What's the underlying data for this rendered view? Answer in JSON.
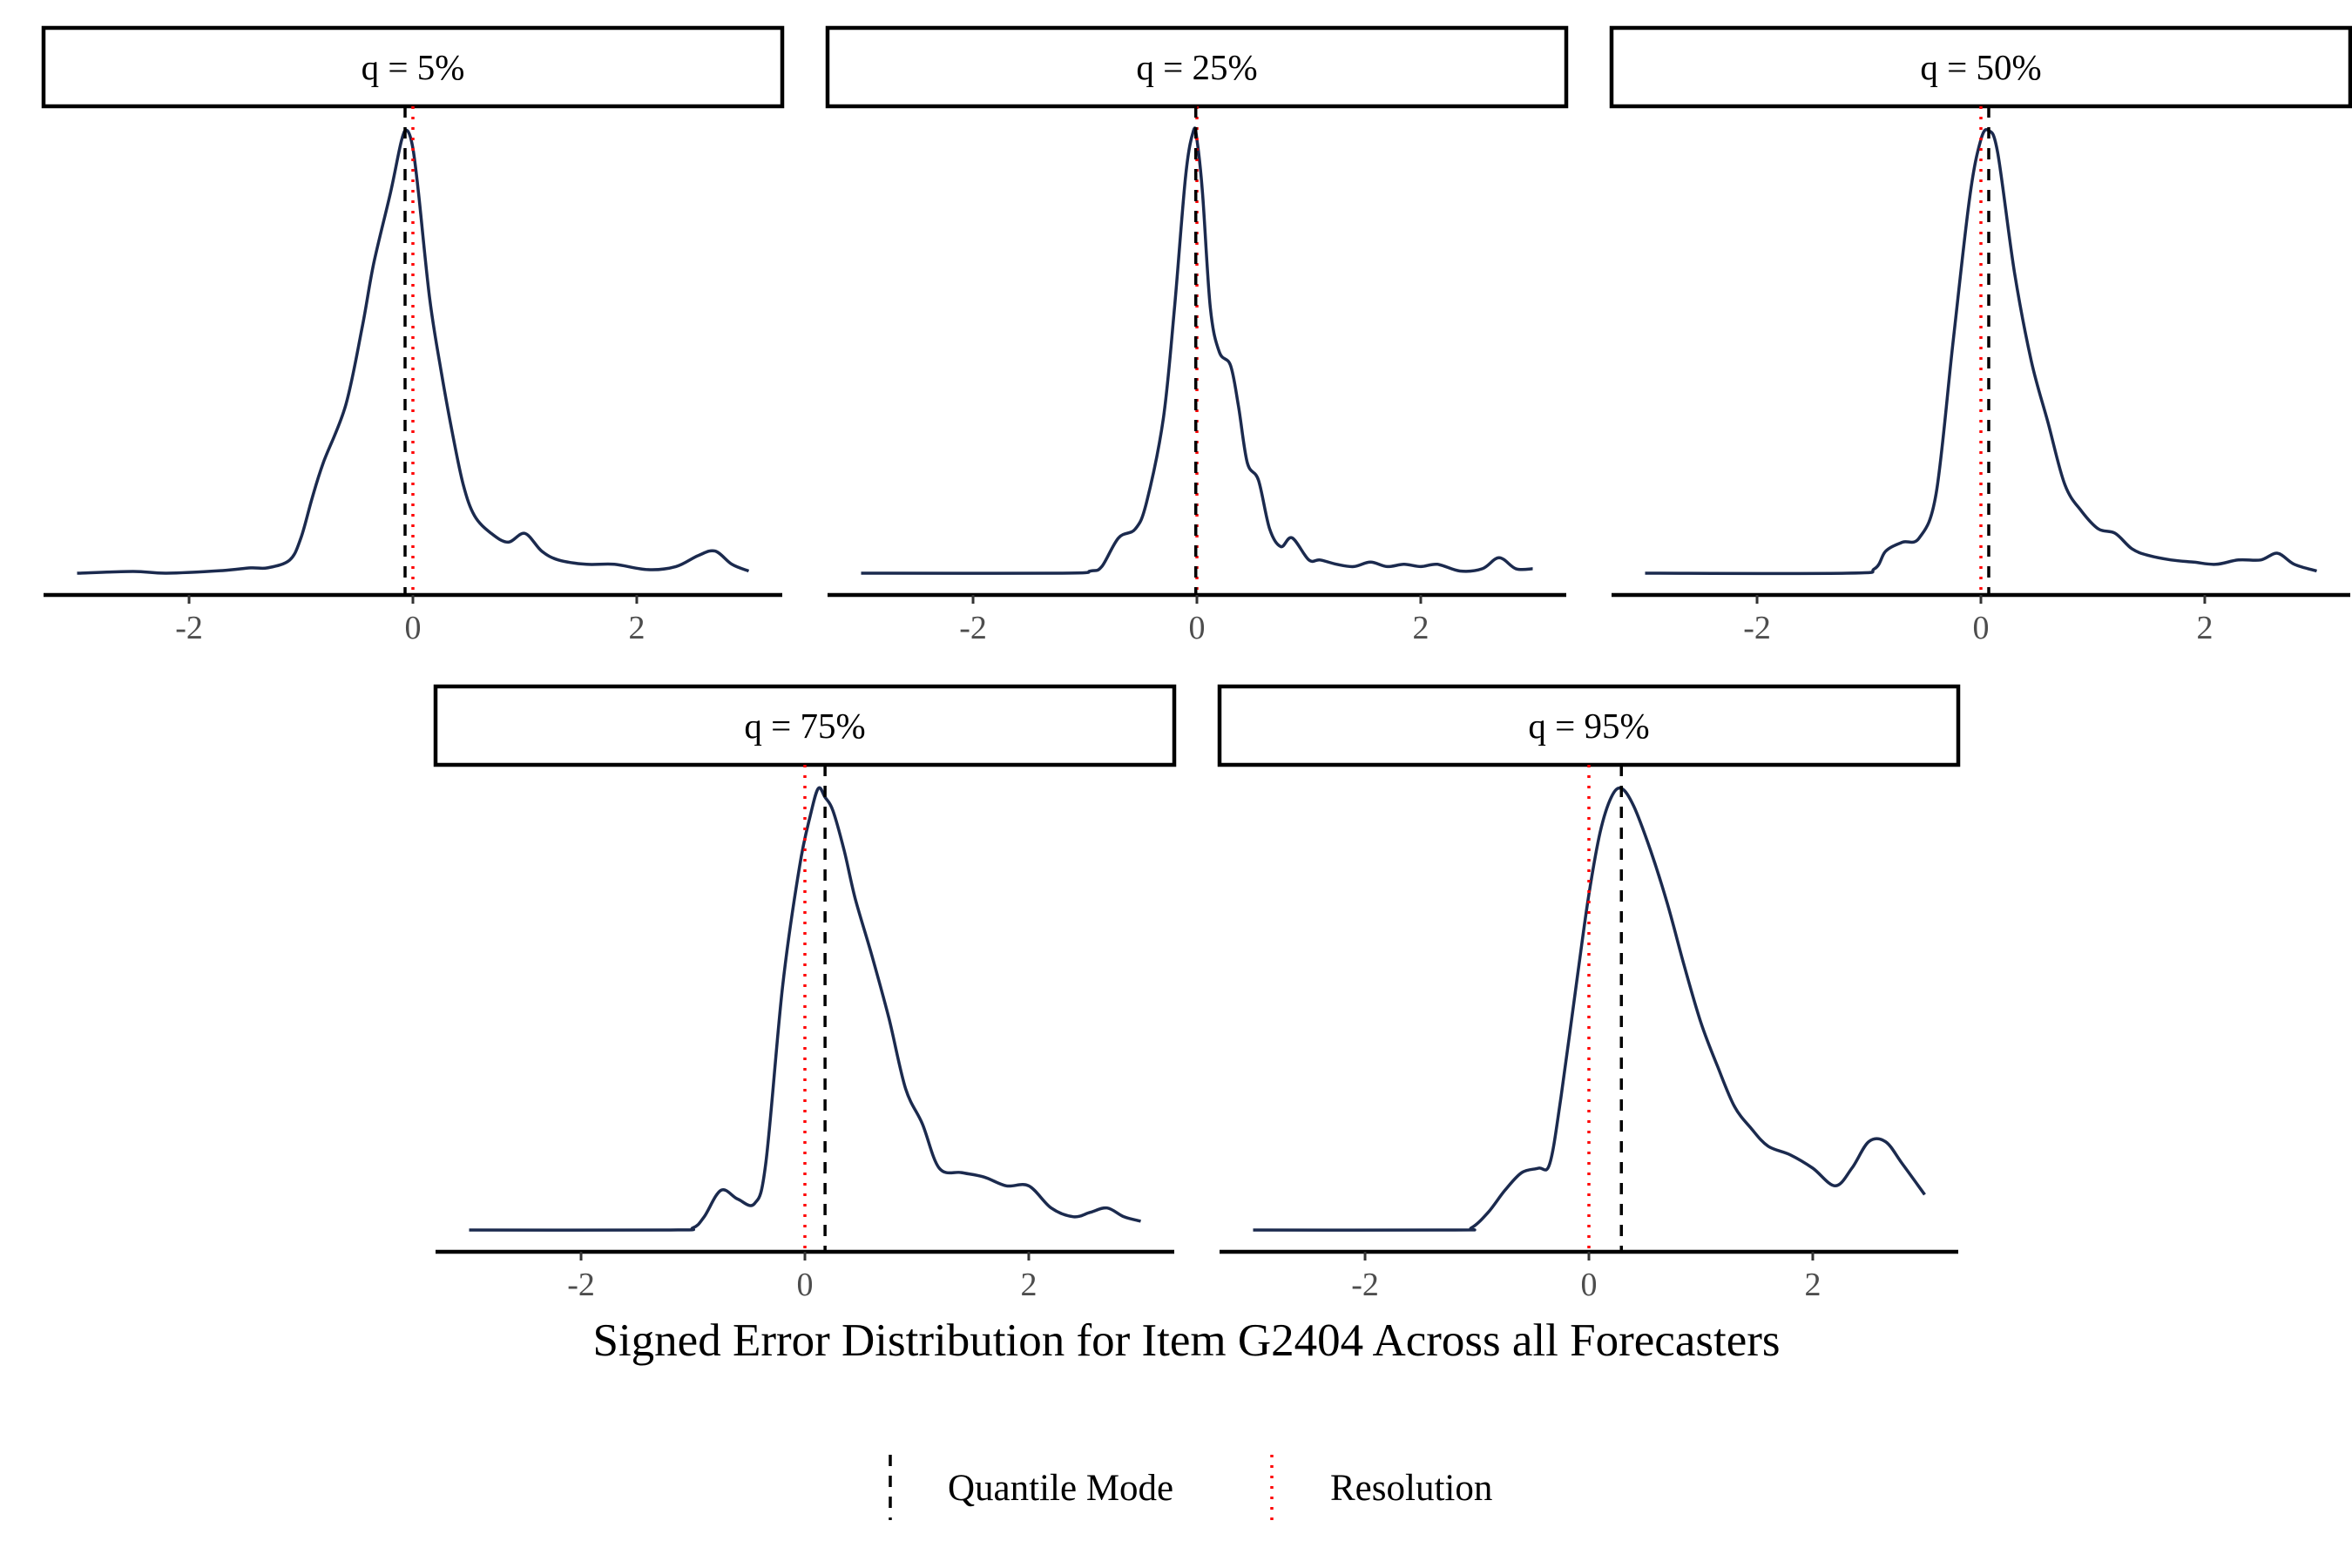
{
  "chart_data": {
    "type": "line",
    "kind": "density facets",
    "xlabel": "Signed Error Distribution for Item G2404 Across all Forecasters",
    "ylabel": "",
    "xlim": [
      -3.3,
      3.3
    ],
    "x_ticks": [
      -2,
      0,
      2
    ],
    "x_tick_labels": [
      "-2",
      "0",
      "2"
    ],
    "grid": false,
    "colors": {
      "density": "#1b2a4e",
      "mode_line": "#000000",
      "resolution_line": "#ff0000",
      "strip_border": "#000000"
    },
    "legend": {
      "position": "bottom",
      "entries": [
        {
          "label": "Quantile Mode",
          "linetype": "dashed",
          "color": "#000000"
        },
        {
          "label": "Resolution",
          "linetype": "dotted",
          "color": "#ff0000"
        }
      ]
    },
    "panels": [
      {
        "label": "q = 5%",
        "mode": -0.07,
        "resolution": 0.0,
        "density": {
          "x": [
            -3.0,
            -2.5,
            -2.2,
            -1.7,
            -1.45,
            -1.3,
            -1.1,
            -1.0,
            -0.9,
            -0.8,
            -0.6,
            -0.45,
            -0.35,
            -0.2,
            -0.1,
            -0.05,
            0.0,
            0.05,
            0.15,
            0.25,
            0.35,
            0.45,
            0.55,
            0.7,
            0.85,
            1.0,
            1.15,
            1.3,
            1.55,
            1.8,
            2.1,
            2.35,
            2.55,
            2.7,
            2.85,
            3.0
          ],
          "y": [
            0.0,
            0.004,
            0.0,
            0.006,
            0.012,
            0.012,
            0.03,
            0.08,
            0.17,
            0.25,
            0.38,
            0.56,
            0.7,
            0.86,
            0.98,
            1.0,
            0.96,
            0.86,
            0.62,
            0.46,
            0.32,
            0.2,
            0.13,
            0.09,
            0.07,
            0.09,
            0.05,
            0.03,
            0.02,
            0.02,
            0.008,
            0.015,
            0.04,
            0.05,
            0.02,
            0.005
          ]
        }
      },
      {
        "label": "q = 25%",
        "mode": -0.01,
        "resolution": 0.0,
        "density": {
          "x": [
            -3.0,
            -1.2,
            -0.95,
            -0.85,
            -0.7,
            -0.55,
            -0.45,
            -0.3,
            -0.2,
            -0.1,
            -0.03,
            0.0,
            0.05,
            0.12,
            0.2,
            0.3,
            0.37,
            0.45,
            0.55,
            0.65,
            0.75,
            0.85,
            1.0,
            1.1,
            1.25,
            1.4,
            1.55,
            1.7,
            1.85,
            2.0,
            2.15,
            2.35,
            2.55,
            2.7,
            2.85,
            3.0
          ],
          "y": [
            0.0,
            0.0,
            0.005,
            0.015,
            0.08,
            0.1,
            0.16,
            0.35,
            0.6,
            0.9,
            1.0,
            0.98,
            0.86,
            0.6,
            0.5,
            0.47,
            0.38,
            0.25,
            0.21,
            0.1,
            0.06,
            0.08,
            0.03,
            0.03,
            0.02,
            0.015,
            0.025,
            0.015,
            0.02,
            0.015,
            0.02,
            0.005,
            0.01,
            0.035,
            0.01,
            0.01
          ]
        }
      },
      {
        "label": "q = 50%",
        "mode": 0.07,
        "resolution": 0.0,
        "density": {
          "x": [
            -3.0,
            -1.2,
            -0.95,
            -0.85,
            -0.7,
            -0.55,
            -0.4,
            -0.25,
            -0.1,
            0.0,
            0.07,
            0.15,
            0.3,
            0.45,
            0.6,
            0.75,
            0.9,
            1.05,
            1.2,
            1.35,
            1.5,
            1.7,
            1.9,
            2.1,
            2.3,
            2.5,
            2.65,
            2.8,
            3.0
          ],
          "y": [
            0.0,
            0.0,
            0.01,
            0.05,
            0.07,
            0.08,
            0.18,
            0.52,
            0.85,
            0.98,
            1.0,
            0.95,
            0.68,
            0.48,
            0.34,
            0.2,
            0.14,
            0.1,
            0.09,
            0.055,
            0.04,
            0.03,
            0.025,
            0.02,
            0.03,
            0.03,
            0.045,
            0.02,
            0.005
          ]
        }
      },
      {
        "label": "q = 75%",
        "mode": 0.18,
        "resolution": 0.0,
        "density": {
          "x": [
            -3.0,
            -1.2,
            -1.0,
            -0.9,
            -0.75,
            -0.6,
            -0.45,
            -0.35,
            -0.2,
            -0.05,
            0.05,
            0.12,
            0.18,
            0.25,
            0.35,
            0.45,
            0.6,
            0.75,
            0.9,
            1.05,
            1.2,
            1.4,
            1.6,
            1.8,
            2.0,
            2.2,
            2.4,
            2.55,
            2.7,
            2.85,
            3.0
          ],
          "y": [
            0.0,
            0.0,
            0.005,
            0.03,
            0.09,
            0.07,
            0.06,
            0.15,
            0.55,
            0.82,
            0.94,
            1.0,
            0.98,
            0.95,
            0.86,
            0.75,
            0.62,
            0.48,
            0.32,
            0.24,
            0.14,
            0.13,
            0.12,
            0.1,
            0.1,
            0.05,
            0.03,
            0.04,
            0.05,
            0.03,
            0.02
          ]
        }
      },
      {
        "label": "q = 95%",
        "mode": 0.29,
        "resolution": 0.0,
        "density": {
          "x": [
            -3.0,
            -1.2,
            -1.05,
            -0.9,
            -0.75,
            -0.6,
            -0.45,
            -0.35,
            -0.25,
            -0.1,
            0.0,
            0.1,
            0.2,
            0.29,
            0.4,
            0.55,
            0.7,
            0.85,
            1.0,
            1.15,
            1.3,
            1.45,
            1.6,
            1.8,
            2.0,
            2.2,
            2.35,
            2.5,
            2.65,
            2.8,
            3.0
          ],
          "y": [
            0.0,
            0.0,
            0.005,
            0.04,
            0.09,
            0.13,
            0.14,
            0.15,
            0.3,
            0.58,
            0.76,
            0.9,
            0.98,
            1.0,
            0.96,
            0.86,
            0.74,
            0.6,
            0.47,
            0.37,
            0.28,
            0.23,
            0.19,
            0.17,
            0.14,
            0.1,
            0.14,
            0.2,
            0.2,
            0.15,
            0.08
          ]
        }
      }
    ]
  }
}
